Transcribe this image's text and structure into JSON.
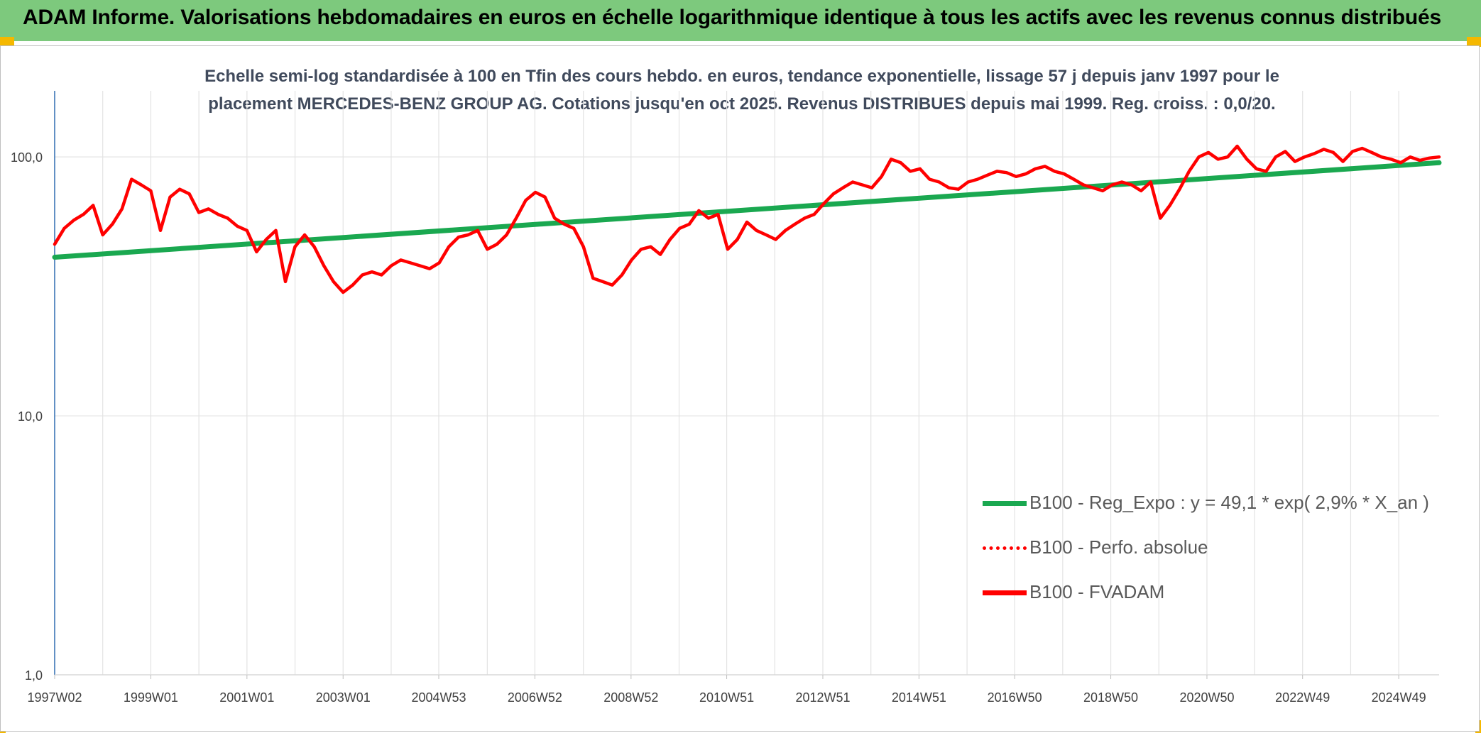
{
  "header": {
    "title": "ADAM Informe. Valorisations hebdomadaires en euros en échelle logarithmique identique à tous les actifs avec les revenus connus distribués"
  },
  "chart": {
    "subtitle_line1": "Echelle semi-log standardisée à 100 en Tfin des cours hebdo. en euros, tendance exponentielle, lissage 57 j depuis janv 1997 pour le",
    "subtitle_line2": "placement MERCEDES-BENZ GROUP AG. Cotations jusqu'en oct 2025. Revenus DISTRIBUES depuis mai 1999. Reg. croiss. : 0,0/20."
  },
  "legend": {
    "items": [
      {
        "label": "B100 - Reg_Expo : y = 49,1 * exp( 2,9% *  X_an )",
        "color": "#1aa850",
        "style": "solid"
      },
      {
        "label": "B100 - Perfo. absolue",
        "color": "#ff0000",
        "style": "dotted"
      },
      {
        "label": "B100 - FVADAM",
        "color": "#ff0000",
        "style": "solid"
      }
    ]
  },
  "chart_data": {
    "type": "line",
    "scale": "log",
    "title": "Echelle semi-log standardisée à 100 en Tfin des cours hebdo. en euros, tendance exponentielle, lissage 57 j depuis janv 1997 pour le placement MERCEDES-BENZ GROUP AG. Cotations jusqu'en oct 2025. Revenus DISTRIBUES depuis mai 1999. Reg. croiss. : 0,0/20.",
    "xlabel": "",
    "ylabel": "",
    "x_range": [
      1997.0,
      2025.8
    ],
    "ylim": [
      1,
      180
    ],
    "y_ticks": [
      {
        "value": 1,
        "label": "1,0"
      },
      {
        "value": 10,
        "label": "10,0"
      },
      {
        "value": 100,
        "label": "100,0"
      }
    ],
    "x_ticks": [
      {
        "t": 1997.0,
        "label": "1997W02"
      },
      {
        "t": 1999.0,
        "label": "1999W01"
      },
      {
        "t": 2001.0,
        "label": "2001W01"
      },
      {
        "t": 2003.0,
        "label": "2003W01"
      },
      {
        "t": 2004.99,
        "label": "2004W53"
      },
      {
        "t": 2006.99,
        "label": "2006W52"
      },
      {
        "t": 2008.99,
        "label": "2008W52"
      },
      {
        "t": 2010.98,
        "label": "2010W51"
      },
      {
        "t": 2012.98,
        "label": "2012W51"
      },
      {
        "t": 2014.98,
        "label": "2014W51"
      },
      {
        "t": 2016.97,
        "label": "2016W50"
      },
      {
        "t": 2018.97,
        "label": "2018W50"
      },
      {
        "t": 2020.97,
        "label": "2020W50"
      },
      {
        "t": 2022.96,
        "label": "2022W49"
      },
      {
        "t": 2024.96,
        "label": "2024W49"
      }
    ],
    "vertical_gridlines_t": [
      1997.0,
      1998.0,
      1999.0,
      2000.0,
      2001.0,
      2002.0,
      2003.0,
      2004.0,
      2004.99,
      2006.0,
      2006.99,
      2008.0,
      2008.99,
      2009.99,
      2010.98,
      2011.98,
      2012.98,
      2013.98,
      2014.98,
      2015.98,
      2016.97,
      2017.97,
      2018.97,
      2019.97,
      2020.97,
      2021.96,
      2022.96,
      2023.96,
      2024.96
    ],
    "series": [
      {
        "name": "B100 - Reg_Expo : y = 49,1 * exp( 2,9% *  X_an )",
        "color": "#1aa850",
        "x": [
          1997.0,
          2025.8
        ],
        "values": [
          41,
          95
        ]
      },
      {
        "name": "B100 - Perfo. absolue",
        "color": "#ff0000",
        "x": [],
        "values": []
      },
      {
        "name": "B100 - FVADAM",
        "color": "#ff0000",
        "x": [
          1997.0,
          1997.2,
          1997.4,
          1997.6,
          1997.8,
          1998.0,
          1998.2,
          1998.4,
          1998.6,
          1998.8,
          1999.0,
          1999.2,
          1999.4,
          1999.6,
          1999.8,
          2000.0,
          2000.2,
          2000.4,
          2000.6,
          2000.8,
          2001.0,
          2001.2,
          2001.4,
          2001.6,
          2001.8,
          2002.0,
          2002.2,
          2002.4,
          2002.6,
          2002.8,
          2003.0,
          2003.2,
          2003.4,
          2003.6,
          2003.8,
          2004.0,
          2004.2,
          2004.4,
          2004.6,
          2004.8,
          2005.0,
          2005.2,
          2005.4,
          2005.6,
          2005.8,
          2006.0,
          2006.2,
          2006.4,
          2006.6,
          2006.8,
          2007.0,
          2007.2,
          2007.4,
          2007.6,
          2007.8,
          2008.0,
          2008.2,
          2008.4,
          2008.6,
          2008.8,
          2009.0,
          2009.2,
          2009.4,
          2009.6,
          2009.8,
          2010.0,
          2010.2,
          2010.4,
          2010.6,
          2010.8,
          2011.0,
          2011.2,
          2011.4,
          2011.6,
          2011.8,
          2012.0,
          2012.2,
          2012.4,
          2012.6,
          2012.8,
          2013.0,
          2013.2,
          2013.4,
          2013.6,
          2013.8,
          2014.0,
          2014.2,
          2014.4,
          2014.6,
          2014.8,
          2015.0,
          2015.2,
          2015.4,
          2015.6,
          2015.8,
          2016.0,
          2016.2,
          2016.4,
          2016.6,
          2016.8,
          2017.0,
          2017.2,
          2017.4,
          2017.6,
          2017.8,
          2018.0,
          2018.2,
          2018.4,
          2018.6,
          2018.8,
          2019.0,
          2019.2,
          2019.4,
          2019.6,
          2019.8,
          2020.0,
          2020.2,
          2020.4,
          2020.6,
          2020.8,
          2021.0,
          2021.2,
          2021.4,
          2021.6,
          2021.8,
          2022.0,
          2022.2,
          2022.4,
          2022.6,
          2022.8,
          2023.0,
          2023.2,
          2023.4,
          2023.6,
          2023.8,
          2024.0,
          2024.2,
          2024.4,
          2024.6,
          2024.8,
          2025.0,
          2025.2,
          2025.4,
          2025.6,
          2025.8
        ],
        "values": [
          46,
          53,
          57,
          60,
          65,
          50,
          55,
          63,
          82,
          78,
          74,
          52,
          70,
          75,
          72,
          61,
          63,
          60,
          58,
          54,
          52,
          43,
          48,
          52,
          33,
          45,
          50,
          45,
          38,
          33,
          30,
          32,
          35,
          36,
          35,
          38,
          40,
          39,
          38,
          37,
          39,
          45,
          49,
          50,
          52,
          44,
          46,
          50,
          58,
          68,
          73,
          70,
          58,
          55,
          53,
          45,
          34,
          33,
          32,
          35,
          40,
          44,
          45,
          42,
          48,
          53,
          55,
          62,
          58,
          60,
          44,
          48,
          56,
          52,
          50,
          48,
          52,
          55,
          58,
          60,
          66,
          72,
          76,
          80,
          78,
          76,
          84,
          98,
          95,
          88,
          90,
          82,
          80,
          76,
          75,
          80,
          82,
          85,
          88,
          87,
          84,
          86,
          90,
          92,
          88,
          86,
          82,
          78,
          76,
          74,
          78,
          80,
          78,
          74,
          80,
          58,
          65,
          75,
          88,
          100,
          104,
          98,
          100,
          110,
          98,
          90,
          88,
          100,
          105,
          96,
          100,
          103,
          107,
          104,
          96,
          105,
          108,
          104,
          100,
          98,
          95,
          100,
          97,
          99,
          100
        ]
      }
    ],
    "legend_position": "bottom-right"
  }
}
